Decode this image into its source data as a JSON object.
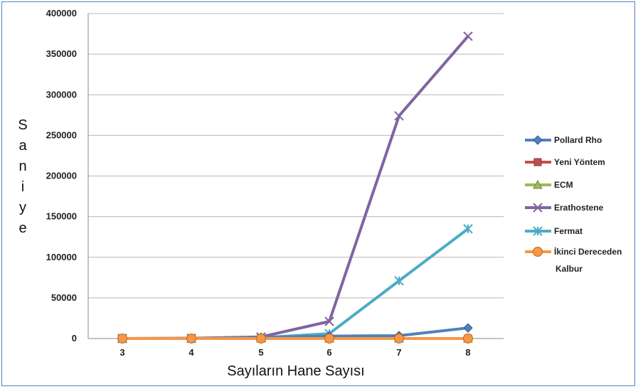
{
  "chart_data": {
    "type": "line",
    "title": "",
    "xlabel": "Sayıların Hane Sayısı",
    "ylabel": "Saniye",
    "x": [
      3,
      4,
      5,
      6,
      7,
      8
    ],
    "ylim": [
      0,
      400000
    ],
    "yticks": [
      0,
      50000,
      100000,
      150000,
      200000,
      250000,
      300000,
      350000,
      400000
    ],
    "grid": true,
    "legend_position": "right",
    "series": [
      {
        "name": "Pollard Rho",
        "color": "#4f81bd",
        "marker": "diamond",
        "values": [
          0,
          200,
          1500,
          3000,
          3500,
          13000
        ]
      },
      {
        "name": "Yeni Yöntem",
        "color": "#c0504d",
        "marker": "square",
        "values": [
          0,
          0,
          0,
          0,
          0,
          0
        ]
      },
      {
        "name": "ECM",
        "color": "#9bbb59",
        "marker": "triangle",
        "values": [
          0,
          0,
          0,
          0,
          0,
          0
        ]
      },
      {
        "name": "Erathostene",
        "color": "#8064a2",
        "marker": "x",
        "values": [
          0,
          300,
          2000,
          21000,
          274000,
          372000
        ]
      },
      {
        "name": "Fermat",
        "color": "#4bacc6",
        "marker": "star",
        "values": [
          0,
          100,
          1000,
          6000,
          71000,
          135000
        ]
      },
      {
        "name": "İkinci Dereceden Kalbur",
        "color": "#f79646",
        "marker": "circle",
        "values": [
          0,
          0,
          0,
          0,
          0,
          0
        ]
      }
    ]
  }
}
